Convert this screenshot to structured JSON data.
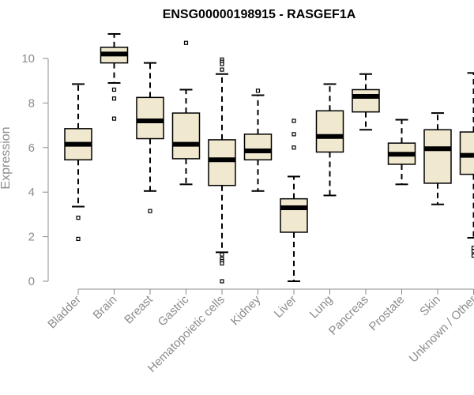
{
  "chart_data": {
    "type": "box",
    "title": "ENSG00000198915 - RASGEF1A",
    "xlabel": "",
    "ylabel": "Expression",
    "ylim": [
      0,
      11.2
    ],
    "yticks": [
      0,
      2,
      4,
      6,
      8,
      10
    ],
    "grid": false,
    "box_fill": "#f0e9cf",
    "categories": [
      "Bladder",
      "Brain",
      "Breast",
      "Gastric",
      "Hematopoietic cells",
      "Kidney",
      "Liver",
      "Lung",
      "Pancreas",
      "Prostate",
      "Skin",
      "Unknown / Other"
    ],
    "boxes": [
      {
        "name": "Bladder",
        "whisker_low": 3.35,
        "q1": 5.45,
        "median": 6.15,
        "q3": 6.85,
        "whisker_high": 8.85,
        "outliers": [
          2.85,
          1.9
        ]
      },
      {
        "name": "Brain",
        "whisker_low": 8.9,
        "q1": 9.8,
        "median": 10.2,
        "q3": 10.5,
        "whisker_high": 11.1,
        "outliers": [
          8.6,
          8.2,
          7.3
        ]
      },
      {
        "name": "Breast",
        "whisker_low": 4.05,
        "q1": 6.4,
        "median": 7.2,
        "q3": 8.25,
        "whisker_high": 9.8,
        "outliers": [
          3.15
        ]
      },
      {
        "name": "Gastric",
        "whisker_low": 4.35,
        "q1": 5.5,
        "median": 6.15,
        "q3": 7.55,
        "whisker_high": 8.6,
        "outliers": [
          10.7
        ]
      },
      {
        "name": "Hematopoietic cells",
        "whisker_low": 1.3,
        "q1": 4.3,
        "median": 5.45,
        "q3": 6.35,
        "whisker_high": 9.3,
        "outliers": [
          9.95,
          9.85,
          9.75,
          9.5,
          1.2,
          1.0,
          0.9,
          0.8,
          0.0
        ]
      },
      {
        "name": "Kidney",
        "whisker_low": 4.05,
        "q1": 5.45,
        "median": 5.85,
        "q3": 6.6,
        "whisker_high": 8.35,
        "outliers": [
          8.55
        ]
      },
      {
        "name": "Liver",
        "whisker_low": 0.0,
        "q1": 2.2,
        "median": 3.3,
        "q3": 3.7,
        "whisker_high": 4.7,
        "outliers": [
          7.2,
          6.6,
          6.0
        ]
      },
      {
        "name": "Lung",
        "whisker_low": 3.85,
        "q1": 5.8,
        "median": 6.5,
        "q3": 7.65,
        "whisker_high": 8.85,
        "outliers": []
      },
      {
        "name": "Pancreas",
        "whisker_low": 6.8,
        "q1": 7.6,
        "median": 8.3,
        "q3": 8.6,
        "whisker_high": 9.3,
        "outliers": []
      },
      {
        "name": "Prostate",
        "whisker_low": 4.35,
        "q1": 5.25,
        "median": 5.7,
        "q3": 6.2,
        "whisker_high": 7.25,
        "outliers": []
      },
      {
        "name": "Skin",
        "whisker_low": 3.45,
        "q1": 4.4,
        "median": 5.95,
        "q3": 6.8,
        "whisker_high": 7.55,
        "outliers": []
      },
      {
        "name": "Unknown / Other",
        "whisker_low": 1.95,
        "q1": 4.8,
        "median": 5.65,
        "q3": 6.7,
        "whisker_high": 9.35,
        "outliers": [
          1.5,
          1.35,
          1.15
        ]
      }
    ]
  }
}
